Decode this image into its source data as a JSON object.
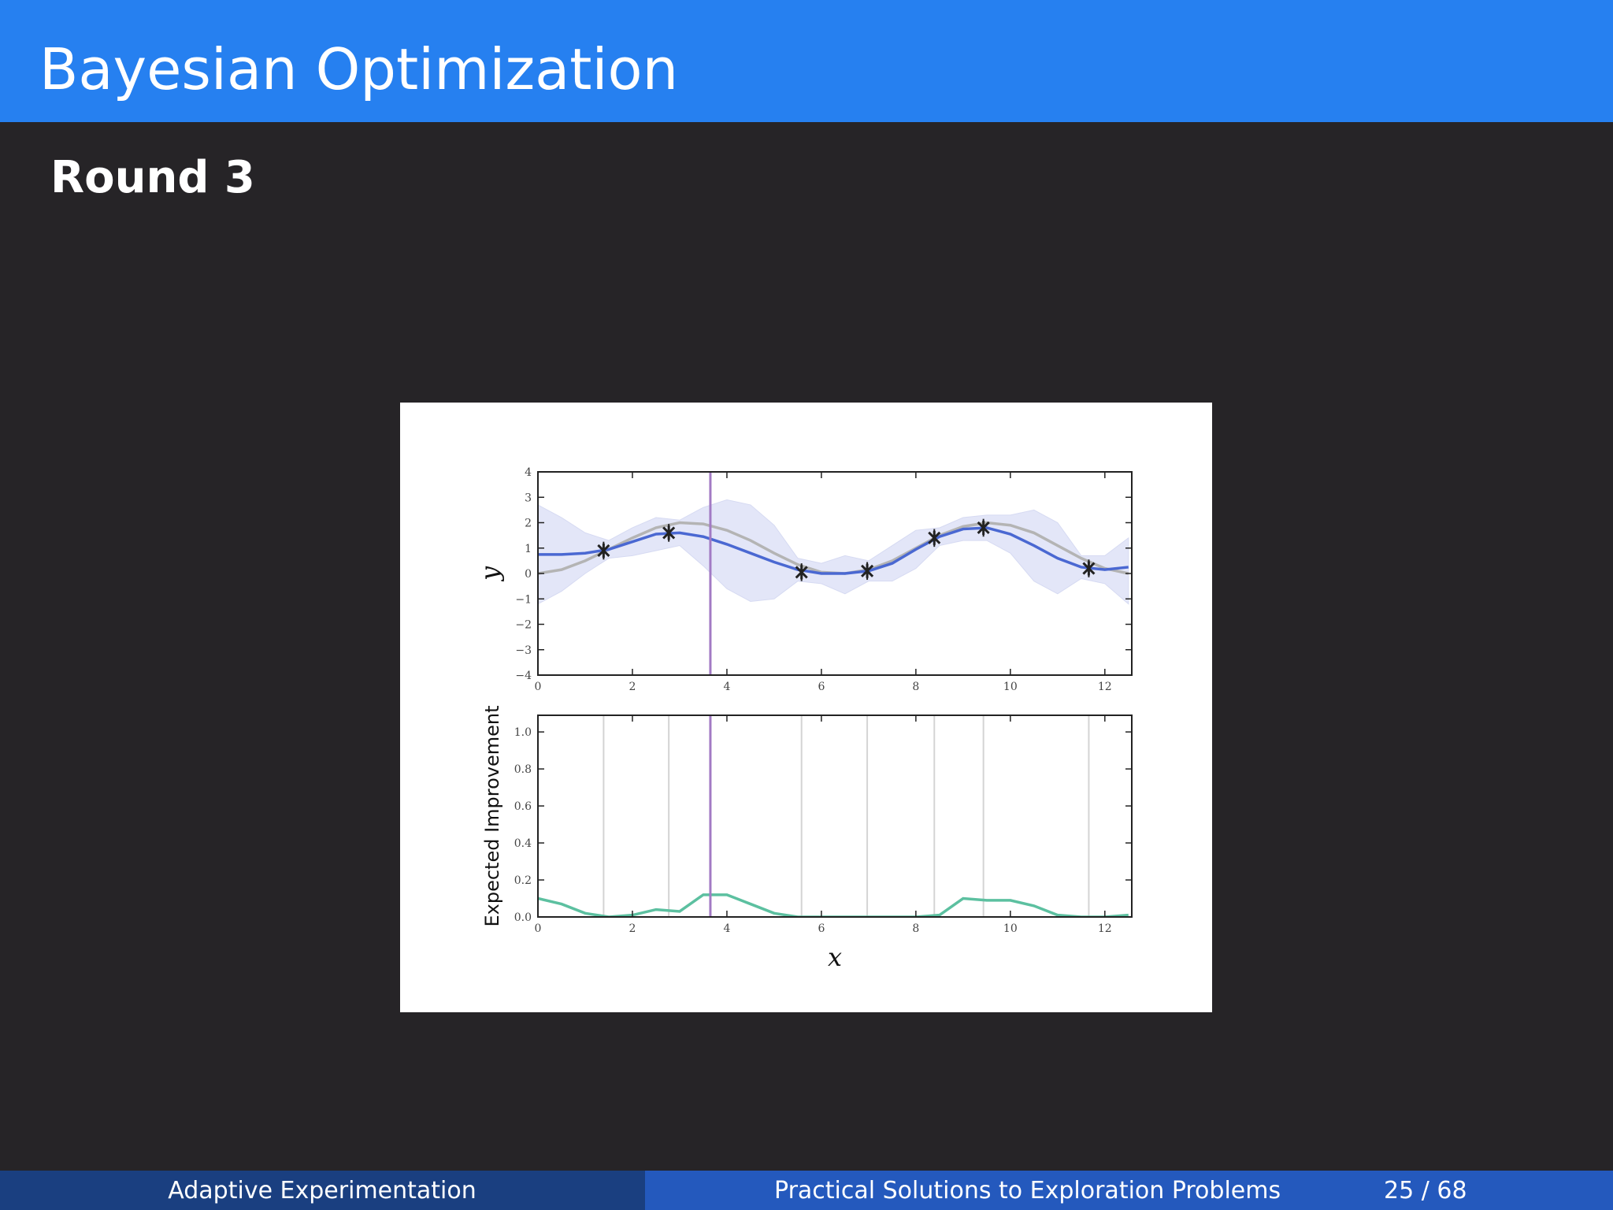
{
  "header": {
    "title": "Bayesian Optimization"
  },
  "subtitle": "Round 3",
  "footer": {
    "left": "Adaptive Experimentation",
    "center": "Practical Solutions to Exploration Problems",
    "page": "25 / 68"
  },
  "chart_data": [
    {
      "type": "line",
      "ylabel": "y",
      "x": [
        0,
        0.5,
        1,
        1.5,
        2,
        2.5,
        3,
        3.5,
        4,
        4.5,
        5,
        5.5,
        6,
        6.5,
        7,
        7.5,
        8,
        8.5,
        9,
        9.5,
        10,
        10.5,
        11,
        11.5,
        12,
        12.5
      ],
      "xlim": [
        0,
        12.57
      ],
      "ylim": [
        -4,
        4
      ],
      "xticks": [
        0,
        2,
        4,
        6,
        8,
        10,
        12
      ],
      "yticks": [
        {
          "value": -4,
          "label": "−4"
        },
        {
          "value": -3,
          "label": "−3"
        },
        {
          "value": -2,
          "label": "−2"
        },
        {
          "value": -1,
          "label": "−1"
        },
        0,
        1,
        2,
        3,
        4
      ],
      "series": [
        {
          "color": "#b4b4b4",
          "values": [
            0.0,
            0.15,
            0.5,
            0.95,
            1.4,
            1.8,
            2.0,
            1.95,
            1.7,
            1.3,
            0.8,
            0.35,
            0.05,
            0.0,
            0.15,
            0.5,
            1.0,
            1.5,
            1.85,
            2.0,
            1.9,
            1.6,
            1.1,
            0.6,
            0.2,
            0.0
          ]
        },
        {
          "color": "#4a68d2",
          "values": [
            0.75,
            0.75,
            0.8,
            0.95,
            1.25,
            1.55,
            1.6,
            1.45,
            1.15,
            0.8,
            0.45,
            0.15,
            0.0,
            0.0,
            0.1,
            0.4,
            0.95,
            1.45,
            1.75,
            1.8,
            1.55,
            1.1,
            0.6,
            0.25,
            0.15,
            0.25
          ]
        }
      ],
      "band": {
        "color": "#e3e6f8",
        "upper": [
          2.7,
          2.2,
          1.6,
          1.3,
          1.8,
          2.2,
          2.1,
          2.6,
          2.9,
          2.7,
          1.9,
          0.6,
          0.4,
          0.7,
          0.5,
          1.1,
          1.7,
          1.8,
          2.2,
          2.3,
          2.3,
          2.5,
          2.0,
          0.7,
          0.7,
          1.4
        ],
        "lower": [
          -1.2,
          -0.7,
          0.0,
          0.6,
          0.7,
          0.9,
          1.1,
          0.3,
          -0.6,
          -1.1,
          -1.0,
          -0.3,
          -0.4,
          -0.8,
          -0.3,
          -0.3,
          0.2,
          1.1,
          1.3,
          1.3,
          0.8,
          -0.3,
          -0.8,
          -0.2,
          -0.4,
          -1.2
        ]
      },
      "observations": {
        "color": "#222222",
        "x": [
          1.39,
          2.77,
          5.58,
          6.97,
          8.39,
          9.43,
          11.66
        ],
        "y": [
          0.9,
          1.6,
          0.05,
          0.1,
          1.4,
          1.8,
          0.2
        ],
        "err": [
          0.35,
          0.35,
          0.35,
          0.35,
          0.35,
          0.35,
          0.35
        ]
      },
      "vline": {
        "x": 3.65,
        "color": "#a27ac4"
      }
    },
    {
      "type": "line",
      "xlabel": "x",
      "ylabel": "Expected Improvement",
      "x": [
        0,
        0.5,
        1,
        1.5,
        2,
        2.5,
        3,
        3.5,
        4,
        4.5,
        5,
        5.5,
        6,
        6.5,
        7,
        7.5,
        8,
        8.5,
        9,
        9.5,
        10,
        10.5,
        11,
        11.5,
        12,
        12.5
      ],
      "xlim": [
        0,
        12.57
      ],
      "ylim": [
        0,
        1.09
      ],
      "xticks": [
        0,
        2,
        4,
        6,
        8,
        10,
        12
      ],
      "yticks": [
        {
          "value": 0,
          "label": "0.0"
        },
        0.2,
        0.4,
        0.6,
        0.8,
        {
          "value": 1,
          "label": "1.0"
        }
      ],
      "series": [
        {
          "color": "#5cc0a0",
          "values": [
            0.1,
            0.07,
            0.02,
            0.0,
            0.01,
            0.04,
            0.03,
            0.12,
            0.12,
            0.07,
            0.02,
            0.0,
            0.0,
            0.0,
            0.0,
            0.0,
            0.0,
            0.01,
            0.1,
            0.09,
            0.09,
            0.06,
            0.01,
            0.0,
            0.0,
            0.01
          ]
        }
      ],
      "guides_color": "#d4d4d4",
      "vline": {
        "x": 3.65,
        "color": "#a27ac4"
      }
    }
  ]
}
